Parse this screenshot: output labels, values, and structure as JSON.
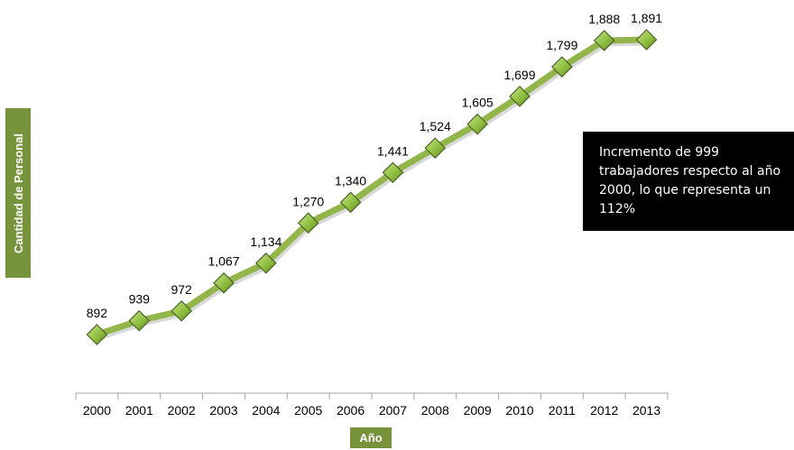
{
  "chart_data": {
    "type": "line",
    "title": "",
    "xlabel": "Año",
    "ylabel": "Cantidad de Personal",
    "categories": [
      "2000",
      "2001",
      "2002",
      "2003",
      "2004",
      "2005",
      "2006",
      "2007",
      "2008",
      "2009",
      "2010",
      "2011",
      "2012",
      "2013"
    ],
    "values": [
      892,
      939,
      972,
      1067,
      1134,
      1270,
      1340,
      1441,
      1524,
      1605,
      1699,
      1799,
      1888,
      1891
    ],
    "value_labels": [
      "892",
      "939",
      "972",
      "1,067",
      "1,134",
      "1,270",
      "1,340",
      "1,441",
      "1,524",
      "1,605",
      "1,699",
      "1,799",
      "1,888",
      "1,891"
    ],
    "ylim": [
      700,
      2000
    ],
    "grid": false,
    "y_axis_visible": false,
    "marker": "diamond",
    "line_color": "#92b64a",
    "marker_color": "#92d050",
    "annotation": "Incremento de 999 trabajadores respecto al año 2000, lo que representa un 112%"
  }
}
